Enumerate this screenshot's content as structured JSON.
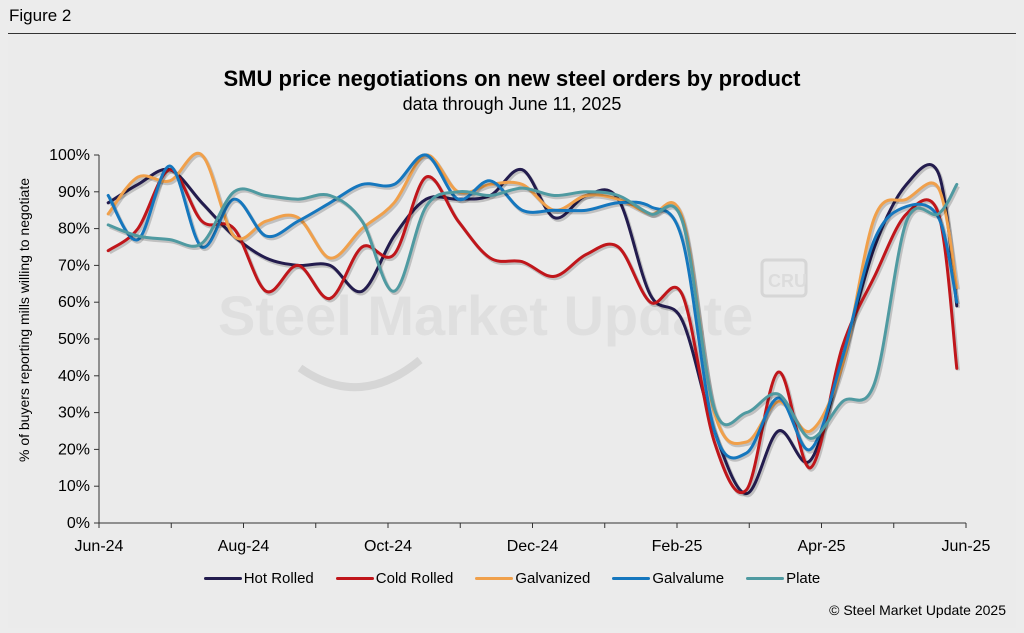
{
  "figure_label": "Figure 2",
  "copyright": "© Steel Market Update 2025",
  "watermark": {
    "brand": "Steel Market Update",
    "logo": "CRU"
  },
  "chart_data": {
    "type": "line",
    "title": "SMU price negotiations on new steel orders by product",
    "subtitle": "data through June 11, 2025",
    "xlabel": "",
    "ylabel": "% of buyers reporting mills willing to negotiate",
    "ylim": [
      0,
      100
    ],
    "yticks": [
      "0%",
      "10%",
      "20%",
      "30%",
      "40%",
      "50%",
      "60%",
      "70%",
      "80%",
      "90%",
      "100%"
    ],
    "xticks": [
      "Jun-24",
      "Aug-24",
      "Oct-24",
      "Dec-24",
      "Feb-25",
      "Apr-25",
      "Jun-25"
    ],
    "x": [
      "2024-06-05",
      "2024-06-18",
      "2024-07-02",
      "2024-07-16",
      "2024-07-30",
      "2024-08-13",
      "2024-08-27",
      "2024-09-10",
      "2024-09-24",
      "2024-10-08",
      "2024-10-22",
      "2024-11-05",
      "2024-11-19",
      "2024-12-03",
      "2024-12-17",
      "2024-12-31",
      "2025-01-14",
      "2025-01-28",
      "2025-02-11",
      "2025-02-25",
      "2025-03-11",
      "2025-03-25",
      "2025-04-08",
      "2025-04-22",
      "2025-05-06",
      "2025-05-20",
      "2025-06-03",
      "2025-06-11"
    ],
    "grid": false,
    "legend_position": "bottom",
    "series": [
      {
        "name": "Hot Rolled",
        "color": "#231c4e",
        "values": [
          87,
          92,
          96,
          87,
          78,
          72,
          70,
          70,
          63,
          78,
          88,
          88,
          89,
          96,
          83,
          89,
          88,
          62,
          55,
          25,
          8,
          25,
          17,
          45,
          75,
          92,
          95,
          59
        ]
      },
      {
        "name": "Cold Rolled",
        "color": "#c0161b",
        "values": [
          74,
          80,
          96,
          82,
          80,
          63,
          70,
          61,
          75,
          73,
          94,
          82,
          72,
          71,
          67,
          73,
          75,
          60,
          62,
          22,
          9,
          41,
          15,
          48,
          67,
          84,
          84,
          42
        ]
      },
      {
        "name": "Galvanized",
        "color": "#f0a04b",
        "values": [
          84,
          94,
          93,
          100,
          78,
          82,
          83,
          72,
          80,
          87,
          100,
          90,
          92,
          92,
          85,
          89,
          88,
          84,
          83,
          30,
          22,
          33,
          25,
          43,
          83,
          88,
          91,
          64
        ]
      },
      {
        "name": "Galvalume",
        "color": "#1577be",
        "values": [
          89,
          77,
          97,
          75,
          88,
          78,
          82,
          87,
          92,
          92,
          100,
          88,
          93,
          85,
          85,
          85,
          87,
          86,
          77,
          25,
          19,
          34,
          20,
          45,
          77,
          86,
          83,
          60
        ]
      },
      {
        "name": "Plate",
        "color": "#4f9aa1",
        "values": [
          81,
          78,
          77,
          76,
          90,
          89,
          88,
          89,
          82,
          63,
          86,
          90,
          89,
          91,
          89,
          90,
          89,
          84,
          82,
          31,
          30,
          35,
          23,
          33,
          38,
          82,
          84,
          92
        ]
      }
    ]
  }
}
